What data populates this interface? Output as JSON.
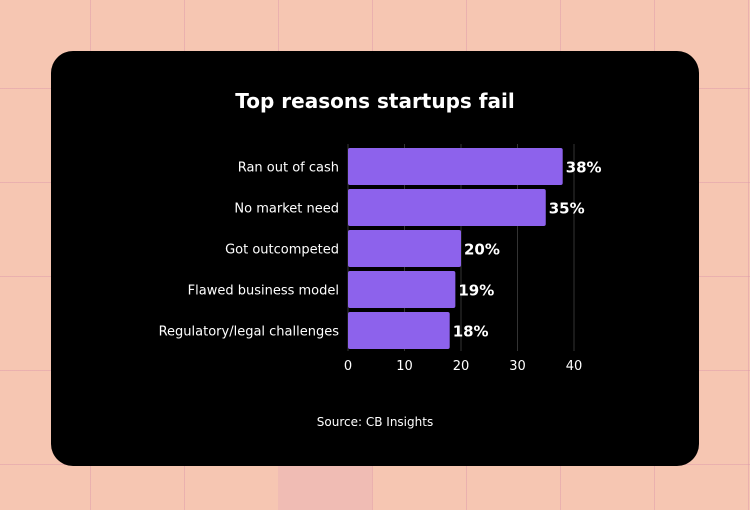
{
  "chart_data": {
    "type": "bar",
    "orientation": "horizontal",
    "title": "Top reasons startups fail",
    "categories": [
      "Ran out of cash",
      "No market need",
      "Got outcompeted",
      "Flawed business model",
      "Regulatory/legal challenges"
    ],
    "values": [
      38,
      35,
      20,
      19,
      18
    ],
    "data_labels": [
      "38%",
      "35%",
      "20%",
      "19%",
      "18%"
    ],
    "x_ticks": [
      "0",
      "10",
      "20",
      "30",
      "40"
    ],
    "xlim": [
      0,
      40
    ],
    "xlabel": "",
    "ylabel": "",
    "grid": true,
    "legend": "none",
    "source": "Source: CB Insights"
  },
  "colors": {
    "bar": "#8d62ec",
    "card": "#000000",
    "text": "#ffffff",
    "grid": "#333333",
    "background": "#f6c6b2"
  }
}
